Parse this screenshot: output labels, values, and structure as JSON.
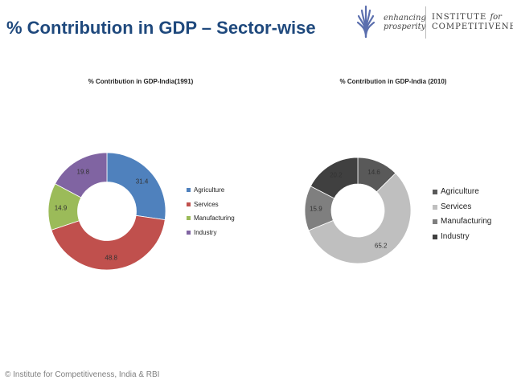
{
  "page": {
    "title": "% Contribution in GDP – Sector-wise",
    "footer": "© Institute for Competitiveness, India & RBI"
  },
  "logo": {
    "tagline_1": "enhancing",
    "tagline_2": "prosperity",
    "name_1": "INSTITUTE",
    "name_for": "for",
    "name_2": "COMPETITIVENESS",
    "icon": "leaf-sheaf-icon",
    "color": "#5b6fae"
  },
  "chart_data": [
    {
      "type": "pie",
      "title": "% Contribution in GDP-India(1991)",
      "categories": [
        "Agriculture",
        "Services",
        "Manufacturing",
        "Industry"
      ],
      "values": [
        31.4,
        48.8,
        14.9,
        19.8
      ],
      "colors": [
        "#4f81bd",
        "#c0504d",
        "#9bbb59",
        "#8064a2"
      ],
      "hole": 0.5,
      "legend": "right"
    },
    {
      "type": "pie",
      "title": "% Contribution in GDP-India (2010)",
      "categories": [
        "Agriculture",
        "Services",
        "Manufacturing",
        "Industry"
      ],
      "values": [
        14.6,
        65.2,
        15.9,
        20.2
      ],
      "colors": [
        "#595959",
        "#bfbfbf",
        "#7f7f7f",
        "#404040"
      ],
      "hole": 0.5,
      "legend": "right"
    }
  ]
}
